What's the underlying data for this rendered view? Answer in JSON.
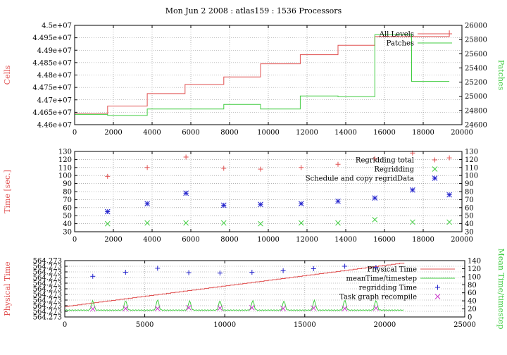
{
  "title": "Mon Jun 2 2008 : atlas159 : 1536 Processors",
  "colors": {
    "red": "#e05050",
    "green": "#40cc40",
    "blue": "#2222cc",
    "magenta": "#cc33cc",
    "grid": "#888888"
  },
  "chart_data": [
    {
      "type": "line",
      "xlabel": "",
      "ylabel": "Cells",
      "y2label": "Patches",
      "xlim": [
        0,
        20000
      ],
      "ylim": [
        44600000,
        45000000
      ],
      "y2lim": [
        24600,
        26000
      ],
      "x_ticks": [
        "0",
        "2000",
        "4000",
        "6000",
        "8000",
        "10000",
        "12000",
        "14000",
        "16000",
        "18000",
        "20000"
      ],
      "y_ticks": [
        "4.46e+07",
        "4.465e+07",
        "4.47e+07",
        "4.475e+07",
        "4.48e+07",
        "4.485e+07",
        "4.49e+07",
        "4.495e+07",
        "4.5e+07"
      ],
      "y2_ticks": [
        "24600",
        "24800",
        "25000",
        "25200",
        "25400",
        "25600",
        "25800",
        "26000"
      ],
      "grid": true,
      "legend_position": "top-right",
      "series": [
        {
          "name": "All Levels",
          "axis": "y",
          "step": true,
          "x": [
            0,
            1700,
            1700,
            3750,
            3750,
            5700,
            5700,
            7700,
            7700,
            9600,
            9600,
            11650,
            11650,
            13600,
            13600,
            15500,
            15500,
            19350,
            19350
          ],
          "y": [
            44643000,
            44643000,
            44675000,
            44675000,
            44725000,
            44725000,
            44762000,
            44762000,
            44792000,
            44792000,
            44845000,
            44845000,
            44882000,
            44882000,
            44920000,
            44920000,
            44955000,
            44955000,
            44980000
          ]
        },
        {
          "name": "Patches",
          "axis": "y2",
          "step": true,
          "x": [
            0,
            1700,
            1700,
            3750,
            3750,
            7700,
            7700,
            9600,
            9600,
            11650,
            11650,
            13600,
            13600,
            15500,
            15500,
            17400,
            17400,
            19350
          ],
          "y": [
            24745,
            24745,
            24730,
            24730,
            24820,
            24820,
            24885,
            24885,
            24820,
            24820,
            25005,
            25005,
            24995,
            24995,
            25870,
            25870,
            25210,
            25210
          ]
        }
      ]
    },
    {
      "type": "scatter",
      "xlabel": "",
      "ylabel": "Time [sec.]",
      "xlim": [
        0,
        20000
      ],
      "ylim": [
        30,
        130
      ],
      "x_ticks": [
        "0",
        "2000",
        "4000",
        "6000",
        "8000",
        "10000",
        "12000",
        "14000",
        "16000",
        "18000",
        "20000"
      ],
      "y_ticks": [
        "30",
        "40",
        "50",
        "60",
        "70",
        "80",
        "90",
        "100",
        "110",
        "120",
        "130"
      ],
      "y2_ticks": [
        "30",
        "40",
        "50",
        "60",
        "70",
        "80",
        "90",
        "100",
        "110",
        "120",
        "130"
      ],
      "grid": true,
      "legend_position": "top-right",
      "series": [
        {
          "name": "Regridding total",
          "marker": "plus",
          "x": [
            1700,
            3750,
            5750,
            7700,
            9600,
            11700,
            13600,
            15500,
            17450,
            19350
          ],
          "y": [
            99,
            110,
            123,
            109,
            108,
            110,
            114,
            121,
            128,
            122
          ]
        },
        {
          "name": "Regridding",
          "marker": "cross",
          "x": [
            1700,
            3750,
            5750,
            7700,
            9600,
            11700,
            13600,
            15500,
            17450,
            19350
          ],
          "y": [
            40,
            41,
            41,
            41,
            40,
            41,
            41,
            45,
            42,
            42
          ]
        },
        {
          "name": "Schedule and copy regridData",
          "marker": "star",
          "x": [
            1700,
            3750,
            5750,
            7700,
            9600,
            11700,
            13600,
            15500,
            17450,
            19350
          ],
          "y": [
            55,
            65,
            78,
            63,
            64,
            65,
            68,
            72,
            82,
            76
          ]
        }
      ]
    },
    {
      "type": "line",
      "xlabel": "",
      "ylabel": "Physical Time",
      "y2label": "Mean Time/timestep",
      "xlim": [
        0,
        25000
      ],
      "y2lim": [
        0,
        140
      ],
      "x_ticks": [
        "0",
        "5000",
        "10000",
        "15000",
        "20000",
        "25000"
      ],
      "y_ticks": [
        "564.273",
        "564.273",
        "564.273",
        "564.273",
        "564.273",
        "564.273",
        "564.273",
        "564.273",
        "564.273",
        "564.273",
        "564.273"
      ],
      "y2_ticks": [
        "0",
        "20",
        "40",
        "60",
        "80",
        "100",
        "120",
        "140"
      ],
      "grid": true,
      "legend_position": "top-right",
      "series": [
        {
          "name": "Physical Time",
          "axis": "y",
          "style": "line",
          "x": [
            0,
            21200
          ],
          "y": [
            0.0,
            1.0
          ]
        },
        {
          "name": "meanTime/timestep",
          "axis": "y2",
          "style": "line",
          "baseline": 17,
          "peak_x": [
            1750,
            3800,
            5800,
            7800,
            9700,
            11750,
            13700,
            15600,
            17500,
            19450
          ],
          "peak_y": [
            40,
            41,
            43,
            40,
            40,
            41,
            40,
            41,
            42,
            41
          ],
          "x_end": 21200
        },
        {
          "name": "regridding Time",
          "axis": "y2",
          "marker": "plus",
          "x": [
            1750,
            3800,
            5800,
            7750,
            9700,
            11700,
            13650,
            15550,
            17500,
            19450
          ],
          "y": [
            101,
            111,
            121,
            110,
            109,
            111,
            115,
            120,
            126,
            123
          ]
        },
        {
          "name": "Task graph recompile",
          "axis": "y2",
          "marker": "cross",
          "x": [
            1750,
            3800,
            5800,
            7750,
            9700,
            11700,
            13650,
            15550,
            17500,
            19450
          ],
          "y": [
            20,
            21,
            21,
            23,
            22,
            23,
            21,
            22,
            21,
            22
          ]
        }
      ]
    }
  ]
}
